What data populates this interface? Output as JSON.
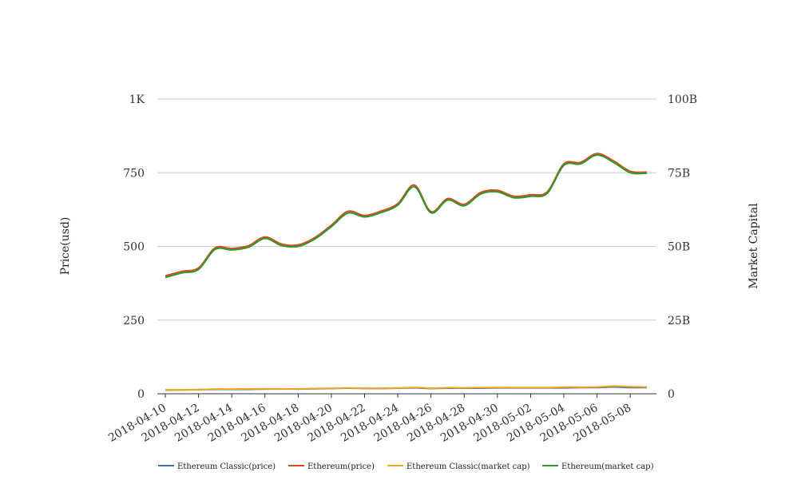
{
  "chart_data": {
    "type": "line",
    "title": "",
    "left_axis": {
      "label": "Price(usd)",
      "ylim": [
        0,
        1000
      ],
      "ticks": [
        0,
        250,
        500,
        750,
        1000
      ],
      "tick_labels": [
        "0",
        "250",
        "500",
        "750",
        "1K"
      ]
    },
    "right_axis": {
      "label": "Market Capital",
      "ylim": [
        0,
        100000000000
      ],
      "ticks": [
        0,
        25000000000,
        50000000000,
        75000000000,
        100000000000
      ],
      "tick_labels": [
        "0",
        "25B",
        "50B",
        "75B",
        "100B"
      ]
    },
    "grid": true,
    "legend_position": "bottom",
    "x": [
      "2018-04-10",
      "2018-04-11",
      "2018-04-12",
      "2018-04-13",
      "2018-04-14",
      "2018-04-15",
      "2018-04-16",
      "2018-04-17",
      "2018-04-18",
      "2018-04-19",
      "2018-04-20",
      "2018-04-21",
      "2018-04-22",
      "2018-04-23",
      "2018-04-24",
      "2018-04-25",
      "2018-04-26",
      "2018-04-27",
      "2018-04-28",
      "2018-04-29",
      "2018-04-30",
      "2018-05-01",
      "2018-05-02",
      "2018-05-03",
      "2018-05-04",
      "2018-05-05",
      "2018-05-06",
      "2018-05-07",
      "2018-05-08",
      "2018-05-09"
    ],
    "x_tick_labels": [
      "2018-04-10",
      "2018-04-12",
      "2018-04-14",
      "2018-04-16",
      "2018-04-18",
      "2018-04-20",
      "2018-04-22",
      "2018-04-24",
      "2018-04-26",
      "2018-04-28",
      "2018-04-30",
      "2018-05-02",
      "2018-05-04",
      "2018-05-06",
      "2018-05-08"
    ],
    "series": [
      {
        "name": "Ethereum Classic(price)",
        "axis": "left",
        "color": "#3d6fb6",
        "values": [
          13,
          13,
          14,
          15,
          15,
          15,
          16,
          16,
          16,
          17,
          18,
          19,
          18,
          18,
          19,
          20,
          18,
          19,
          19,
          19,
          20,
          20,
          20,
          20,
          20,
          21,
          21,
          23,
          21,
          21
        ]
      },
      {
        "name": "Ethereum(price)",
        "axis": "left",
        "color": "#d94a1e",
        "values": [
          400,
          415,
          427,
          495,
          493,
          502,
          532,
          508,
          505,
          530,
          572,
          619,
          605,
          620,
          645,
          708,
          618,
          662,
          643,
          683,
          690,
          670,
          675,
          685,
          780,
          785,
          815,
          790,
          755,
          752
        ]
      },
      {
        "name": "Ethereum Classic(market cap)",
        "axis": "right",
        "color": "#f2a81d",
        "values": [
          1300000000,
          1320000000,
          1400000000,
          1600000000,
          1600000000,
          1650000000,
          1700000000,
          1650000000,
          1650000000,
          1750000000,
          1850000000,
          1950000000,
          1850000000,
          1850000000,
          1950000000,
          2150000000,
          1900000000,
          2050000000,
          2000000000,
          2100000000,
          2150000000,
          2100000000,
          2100000000,
          2100000000,
          2250000000,
          2250000000,
          2300000000,
          2600000000,
          2400000000,
          2300000000
        ]
      },
      {
        "name": "Ethereum(market cap)",
        "axis": "right",
        "color": "#2b9a2b",
        "values": [
          39500000000,
          41000000000,
          42200000000,
          49000000000,
          48800000000,
          49700000000,
          52700000000,
          50300000000,
          50000000000,
          52500000000,
          56700000000,
          61300000000,
          60000000000,
          61500000000,
          64000000000,
          70200000000,
          61400000000,
          65700000000,
          63800000000,
          67800000000,
          68500000000,
          66500000000,
          67000000000,
          68000000000,
          77500000000,
          78000000000,
          81000000000,
          78500000000,
          75000000000,
          74800000000
        ]
      }
    ]
  }
}
